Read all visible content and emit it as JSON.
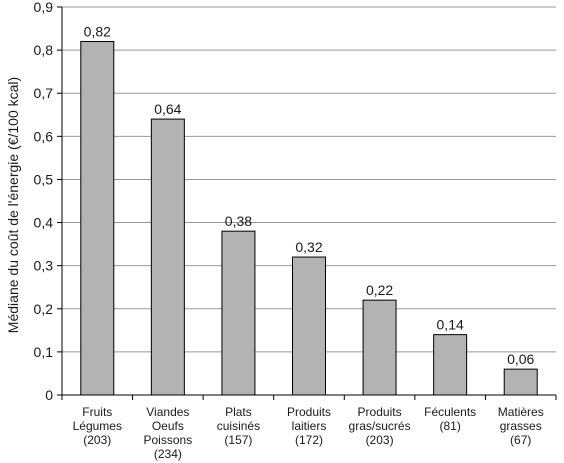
{
  "chart_data": {
    "type": "bar",
    "ylabel": "Médiane du coût de l'énergie (€/100 kcal)",
    "ylim": [
      0,
      0.9
    ],
    "yticks": [
      "0",
      "0,1",
      "0,2",
      "0,3",
      "0,4",
      "0,5",
      "0,6",
      "0,7",
      "0,8",
      "0,9"
    ],
    "categories": [
      [
        "Fruits",
        "Légumes",
        "(203)"
      ],
      [
        "Viandes",
        "Oeufs",
        "Poissons",
        "(234)"
      ],
      [
        "Plats",
        "cuisinés",
        "(157)"
      ],
      [
        "Produits",
        "laitiers",
        "(172)"
      ],
      [
        "Produits",
        "gras/sucrés",
        "(203)"
      ],
      [
        "Féculents",
        "(81)"
      ],
      [
        "Matières",
        "grasses",
        "(67)"
      ]
    ],
    "values": [
      0.82,
      0.64,
      0.38,
      0.32,
      0.22,
      0.14,
      0.06
    ],
    "data_labels": [
      "0,82",
      "0,64",
      "0,38",
      "0,32",
      "0,22",
      "0,14",
      "0,06"
    ],
    "grid": true,
    "colors": {
      "bar_fill": "#b3b3b3",
      "bar_stroke": "#000000",
      "grid": "#999999",
      "axis": "#000000"
    }
  }
}
